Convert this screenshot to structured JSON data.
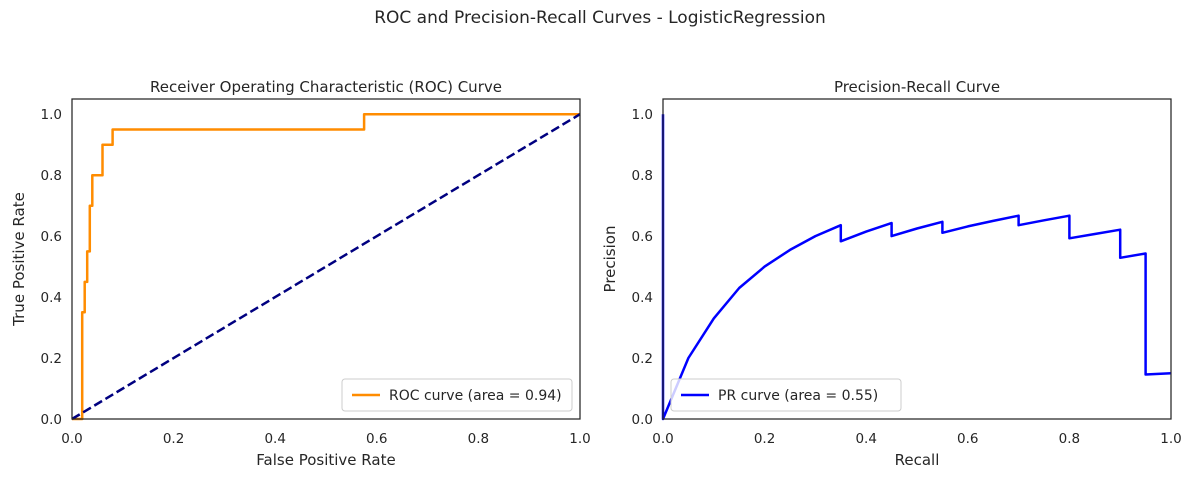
{
  "figure_title": "ROC and Precision-Recall Curves - LogisticRegression",
  "colors": {
    "roc": "#ff8c00",
    "diagonal": "#000080",
    "pr": "#0000ff",
    "axes": "#262626"
  },
  "chart_data": [
    {
      "type": "line",
      "title": "Receiver Operating Characteristic (ROC) Curve",
      "xlabel": "False Positive Rate",
      "ylabel": "True Positive Rate",
      "xlim": [
        0.0,
        1.0
      ],
      "ylim": [
        0.0,
        1.05
      ],
      "xticks": [
        "0.0",
        "0.2",
        "0.4",
        "0.6",
        "0.8",
        "1.0"
      ],
      "yticks": [
        "0.0",
        "0.2",
        "0.4",
        "0.6",
        "0.8",
        "1.0"
      ],
      "grid": false,
      "legend": "lower right",
      "series": [
        {
          "name": "ROC curve (area = 0.94)",
          "color": "#ff8c00",
          "style": "solid",
          "x": [
            0.0,
            0.02,
            0.02,
            0.025,
            0.025,
            0.03,
            0.03,
            0.035,
            0.035,
            0.04,
            0.04,
            0.06,
            0.06,
            0.08,
            0.08,
            0.575,
            0.575,
            1.0
          ],
          "y": [
            0.0,
            0.0,
            0.35,
            0.35,
            0.45,
            0.45,
            0.55,
            0.55,
            0.7,
            0.7,
            0.8,
            0.8,
            0.9,
            0.9,
            0.95,
            0.95,
            1.0,
            1.0
          ]
        },
        {
          "name": "",
          "color": "#000080",
          "style": "dashed",
          "x": [
            0.0,
            1.0
          ],
          "y": [
            0.0,
            1.0
          ]
        }
      ]
    },
    {
      "type": "line",
      "title": "Precision-Recall Curve",
      "xlabel": "Recall",
      "ylabel": "Precision",
      "xlim": [
        0.0,
        1.0
      ],
      "ylim": [
        0.0,
        1.05
      ],
      "xticks": [
        "0.0",
        "0.2",
        "0.4",
        "0.6",
        "0.8",
        "1.0"
      ],
      "yticks": [
        "0.0",
        "0.2",
        "0.4",
        "0.6",
        "0.8",
        "1.0"
      ],
      "grid": false,
      "legend": "lower left",
      "series": [
        {
          "name": "PR curve (area = 0.55)",
          "color": "#0000ff",
          "style": "solid",
          "x": [
            0.0,
            0.0,
            0.0,
            0.05,
            0.1,
            0.15,
            0.2,
            0.25,
            0.3,
            0.35,
            0.35,
            0.4,
            0.45,
            0.45,
            0.5,
            0.55,
            0.55,
            0.6,
            0.65,
            0.7,
            0.7,
            0.75,
            0.8,
            0.8,
            0.85,
            0.9,
            0.9,
            0.95,
            0.95,
            1.0
          ],
          "y": [
            1.0,
            0.0,
            0.0,
            0.2,
            0.33,
            0.43,
            0.5,
            0.555,
            0.6,
            0.636,
            0.583,
            0.615,
            0.643,
            0.6,
            0.625,
            0.647,
            0.611,
            0.632,
            0.65,
            0.667,
            0.636,
            0.652,
            0.667,
            0.593,
            0.607,
            0.621,
            0.529,
            0.543,
            0.146,
            0.15
          ]
        }
      ]
    }
  ]
}
